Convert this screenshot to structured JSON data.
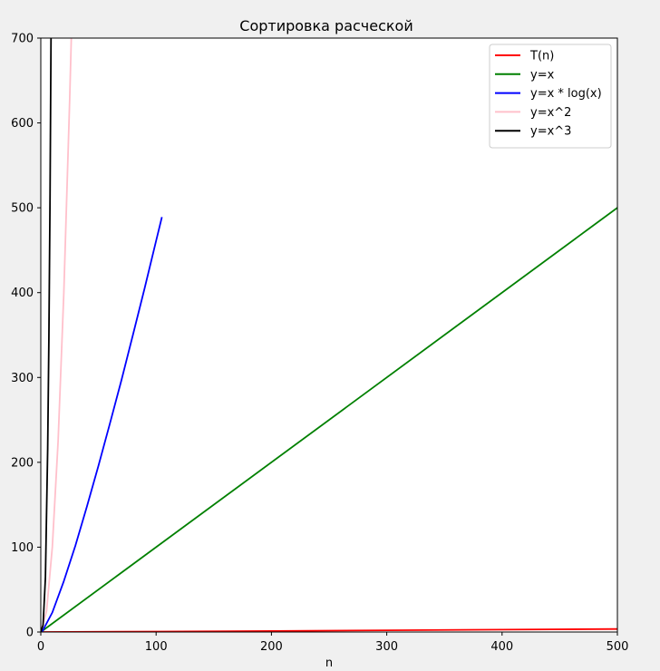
{
  "chart_data": {
    "type": "line",
    "title": "Сортировка расческой",
    "xlabel": "n",
    "ylabel": "",
    "xlim": [
      0,
      500
    ],
    "ylim": [
      0,
      700
    ],
    "xticks": [
      0,
      100,
      200,
      300,
      400,
      500
    ],
    "yticks": [
      0,
      100,
      200,
      300,
      400,
      500,
      600,
      700
    ],
    "grid": false,
    "legend_position": "top-right",
    "series": [
      {
        "name": "T(n)",
        "color": "#ff0000",
        "x": [
          0,
          100,
          200,
          300,
          400,
          500
        ],
        "y": [
          0,
          0.5,
          1.2,
          2.0,
          2.8,
          3.5
        ]
      },
      {
        "name": "y=x",
        "color": "#008000",
        "x": [
          0,
          500
        ],
        "y": [
          0,
          500
        ]
      },
      {
        "name": "y=x * log(x)",
        "color": "#0000ff",
        "x": [
          1,
          10,
          20,
          30,
          40,
          50,
          60,
          70,
          80,
          90,
          100,
          105
        ],
        "y": [
          0,
          23,
          60,
          102,
          148,
          196,
          246,
          297,
          351,
          405,
          461,
          489
        ]
      },
      {
        "name": "y=x^2",
        "color": "#ffc0cb",
        "x": [
          0,
          5,
          10,
          15,
          20,
          25,
          26.5
        ],
        "y": [
          0,
          25,
          100,
          225,
          400,
          625,
          702
        ]
      },
      {
        "name": "y=x^3",
        "color": "#000000",
        "x": [
          0,
          2,
          4,
          6,
          7,
          8,
          8.9
        ],
        "y": [
          0,
          8,
          64,
          216,
          343,
          512,
          705
        ]
      }
    ]
  }
}
